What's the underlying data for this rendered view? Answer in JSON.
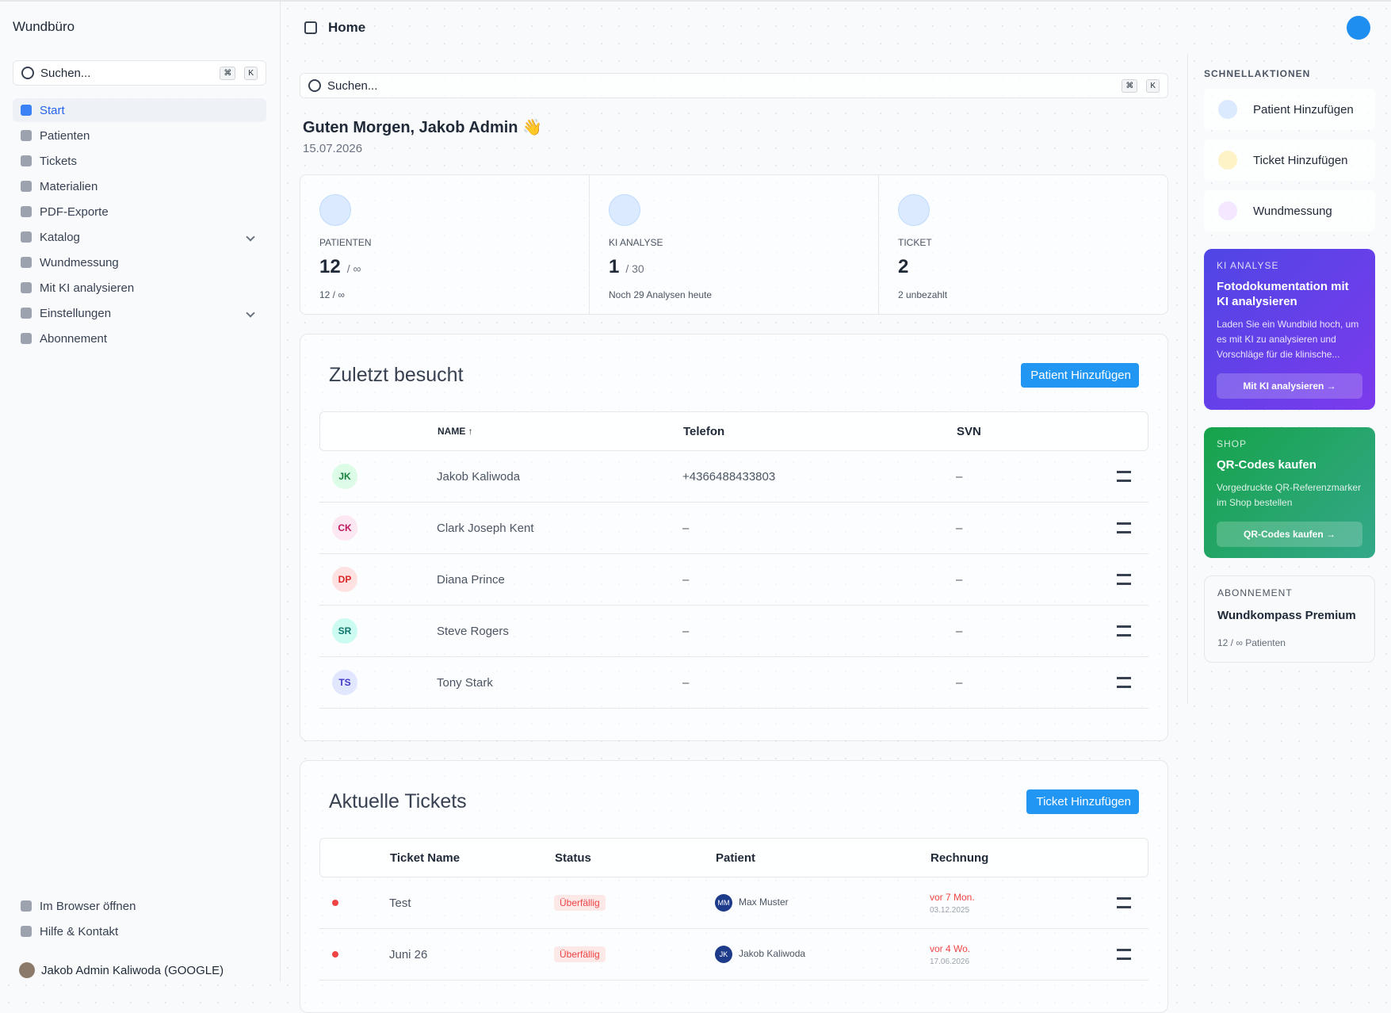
{
  "sidebar": {
    "brand": "Wundbüro",
    "search": "Suchen...",
    "keys": [
      "⌘",
      "K"
    ],
    "nav": [
      "Start",
      "Patienten",
      "Tickets",
      "Materialien",
      "PDF-Exporte",
      "Katalog",
      "Wundmessung",
      "Mit KI analysieren",
      "Einstellungen",
      "Abonnement"
    ],
    "footer": [
      "Im Browser öffnen",
      "Hilfe & Kontakt"
    ],
    "user": "Jakob Admin Kaliwoda (GOOGLE)"
  },
  "header": {
    "title": "Home"
  },
  "main": {
    "search": "Suchen...",
    "keys": [
      "⌘",
      "K"
    ],
    "greeting": "Guten Morgen, Jakob Admin 👋",
    "date": "15.07.2026",
    "stats": [
      {
        "label": "PATIENTEN",
        "value": 12,
        "limit": "/ ∞",
        "note": "12 / ∞"
      },
      {
        "label": "KI ANALYSE",
        "value": 1,
        "limit": "/ 30",
        "note": "Noch 29 Analysen heute"
      },
      {
        "label": "TICKET",
        "value": 2,
        "note": "2 unbezahlt"
      }
    ],
    "recent": {
      "title": "Zuletzt besucht",
      "button": "Patient Hinzufügen",
      "columns": [
        "NAME ↑",
        "Telefon",
        "SVN"
      ],
      "rows": [
        {
          "initials": "JK",
          "name": "Jakob Kaliwoda",
          "phone": "+4366488433803",
          "svn": "–"
        },
        {
          "initials": "CK",
          "name": "Clark Joseph Kent",
          "phone": "–",
          "svn": "–"
        },
        {
          "initials": "DP",
          "name": "Diana Prince",
          "phone": "–",
          "svn": "–"
        },
        {
          "initials": "SR",
          "name": "Steve Rogers",
          "phone": "–",
          "svn": "–"
        },
        {
          "initials": "TS",
          "name": "Tony Stark",
          "phone": "–",
          "svn": "–"
        }
      ]
    },
    "tickets": {
      "title": "Aktuelle Tickets",
      "button": "Ticket Hinzufügen",
      "columns": [
        "Ticket Name",
        "Status",
        "Patient",
        "Rechnung"
      ],
      "rows": [
        {
          "name": "Test",
          "status": "Überfällig",
          "initials": "MM",
          "patient": "Max Muster",
          "due": "vor 7 Mon.",
          "date": "03.12.2025"
        },
        {
          "name": "Juni 26",
          "status": "Überfällig",
          "initials": "JK",
          "patient": "Jakob Kaliwoda",
          "due": "vor 4 Wo.",
          "date": "17.06.2026"
        }
      ]
    }
  },
  "right": {
    "quick_title": "SCHNELLAKTIONEN",
    "actions": [
      "Patient Hinzufügen",
      "Ticket Hinzufügen",
      "Wundmessung"
    ],
    "ki": {
      "tag": "KI ANALYSE",
      "title": "Fotodokumentation mit KI analysieren",
      "text": "Laden Sie ein Wundbild hoch, um es mit KI zu analysieren und Vorschläge für die klinische...",
      "button": "Mit KI analysieren →"
    },
    "shop": {
      "tag": "SHOP",
      "title": "QR-Codes kaufen",
      "text": "Vorgedruckte QR-Referenzmarker im Shop bestellen",
      "button": "QR-Codes kaufen →"
    },
    "sub": {
      "tag": "ABONNEMENT",
      "title": "Wundkompass Premium",
      "text": "12 / ∞ Patienten"
    }
  }
}
